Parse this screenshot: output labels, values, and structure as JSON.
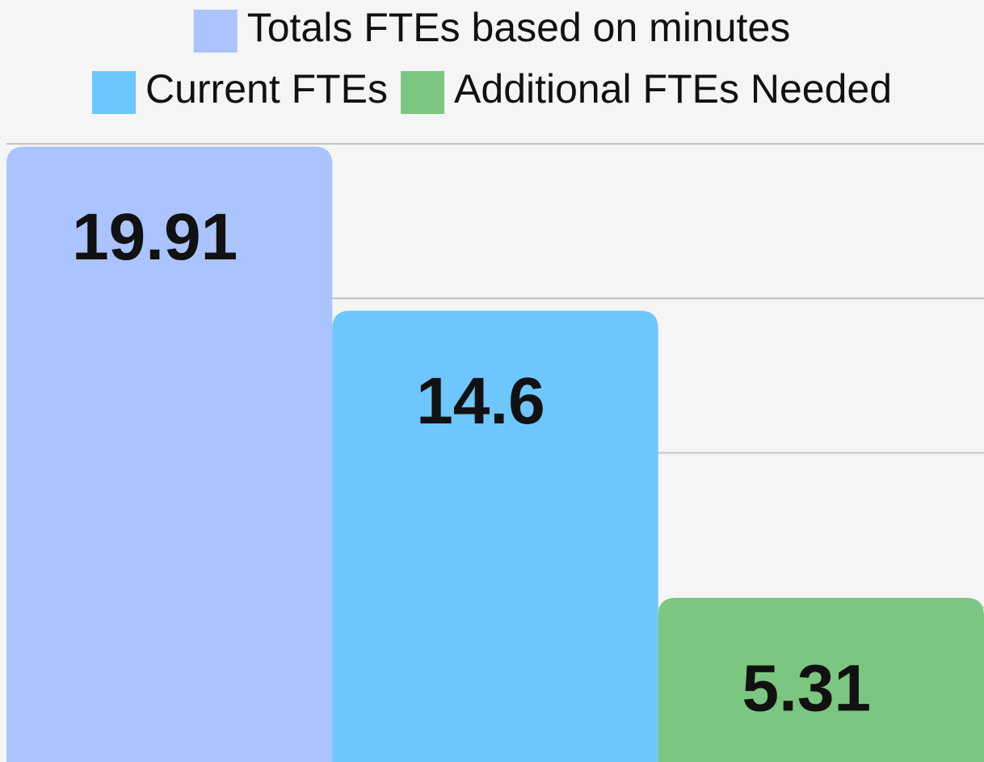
{
  "chart_data": {
    "type": "bar",
    "categories": [
      null
    ],
    "series": [
      {
        "name": "Totals FTEs based on minutes",
        "color": "#abc3fe",
        "values": [
          19.91
        ]
      },
      {
        "name": "Current FTEs",
        "color": "#6ec6fe",
        "values": [
          14.6
        ]
      },
      {
        "name": "Additional FTEs Needed",
        "color": "#7bc680",
        "values": [
          5.31
        ]
      }
    ],
    "ylim": [
      0,
      20
    ],
    "yticks": [
      5,
      10,
      15,
      20
    ],
    "grid": true,
    "legend": "top"
  }
}
